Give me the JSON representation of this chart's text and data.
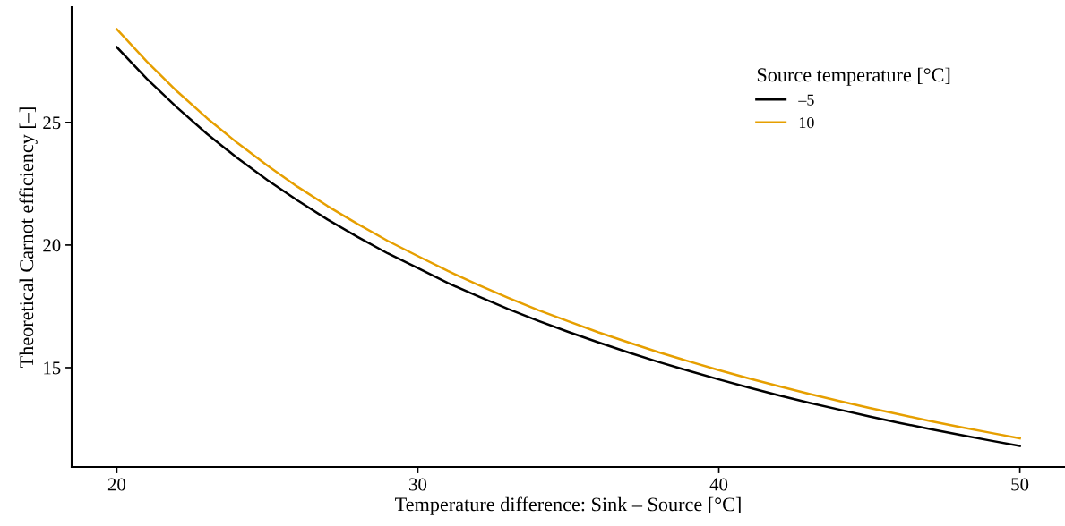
{
  "chart_data": {
    "type": "line",
    "xlabel": "Temperature difference: Sink – Source [°C]",
    "ylabel": "Theoretical Carnot efficiency [–]",
    "legend_title": "Source temperature [°C]",
    "x": [
      20,
      21,
      22,
      23,
      24,
      25,
      26,
      27,
      28,
      29,
      30,
      31,
      32,
      33,
      34,
      35,
      36,
      37,
      38,
      39,
      40,
      41,
      42,
      43,
      44,
      45,
      46,
      47,
      48,
      49,
      50
    ],
    "series": [
      {
        "name": "–5",
        "color": "#000000",
        "values": [
          28.07,
          26.78,
          25.61,
          24.53,
          23.55,
          22.65,
          21.82,
          21.04,
          20.33,
          19.66,
          19.06,
          18.45,
          17.91,
          17.39,
          16.91,
          16.46,
          16.03,
          15.62,
          15.23,
          14.87,
          14.52,
          14.19,
          13.87,
          13.57,
          13.29,
          13.01,
          12.75,
          12.5,
          12.26,
          12.03,
          11.81
        ]
      },
      {
        "name": "10",
        "color": "#e69f00",
        "values": [
          28.8,
          27.48,
          26.27,
          25.17,
          24.17,
          23.24,
          22.38,
          21.59,
          20.86,
          20.17,
          19.55,
          18.94,
          18.38,
          17.85,
          17.35,
          16.89,
          16.44,
          16.03,
          15.63,
          15.26,
          14.9,
          14.56,
          14.24,
          13.93,
          13.64,
          13.36,
          13.09,
          12.83,
          12.58,
          12.35,
          12.12
        ]
      }
    ],
    "xlim": [
      18.5,
      51.5
    ],
    "ylim": [
      10.95,
      29.7
    ],
    "xticks": [
      20,
      30,
      40,
      50
    ],
    "yticks": [
      15,
      20,
      25
    ],
    "grid": false,
    "legend": "top right",
    "marker": "none",
    "line_style": "solid"
  }
}
